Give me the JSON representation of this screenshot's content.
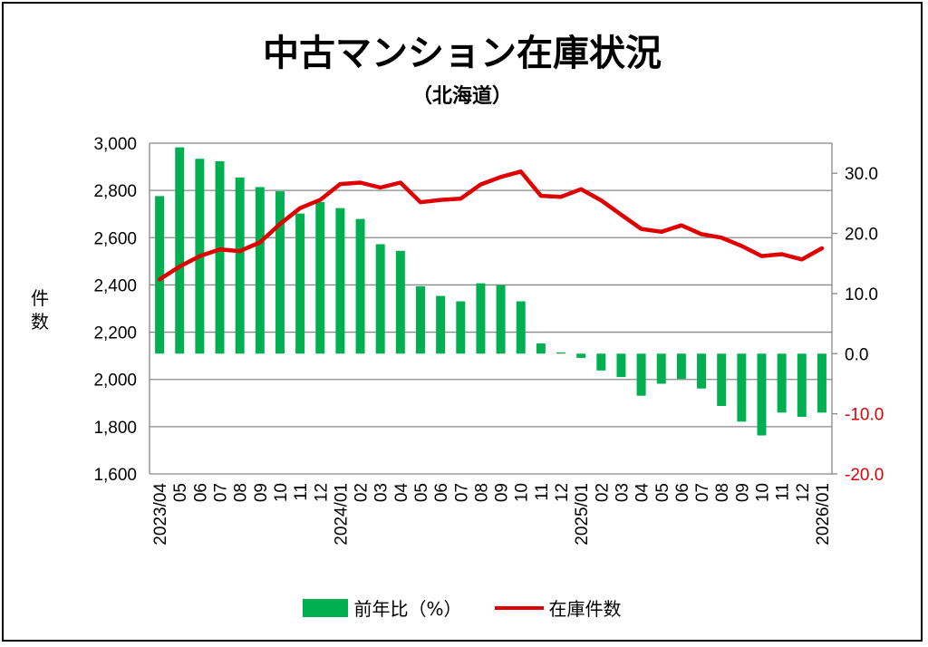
{
  "chart_data": {
    "type": "bar+line",
    "title": "中古マンション在庫状況",
    "subtitle": "（北海道）",
    "ylabel": "件数",
    "left_axis": {
      "min": 1600,
      "max": 3000,
      "step": 200,
      "ticks": [
        "1,600",
        "1,800",
        "2,000",
        "2,200",
        "2,400",
        "2,600",
        "2,800",
        "3,000"
      ]
    },
    "right_axis": {
      "min": -20,
      "max": 35,
      "step": 10,
      "ticks": [
        "-20.0",
        "-10.0",
        "0.0",
        "10.0",
        "20.0",
        "30.0"
      ],
      "tick_values": [
        -20,
        -10,
        0,
        10,
        20,
        30
      ],
      "negative_color": "#e00000",
      "positive_color": "#000000"
    },
    "categories": [
      "2023/04",
      "05",
      "06",
      "07",
      "08",
      "09",
      "10",
      "11",
      "12",
      "2024/01",
      "02",
      "03",
      "04",
      "05",
      "06",
      "07",
      "08",
      "09",
      "10",
      "11",
      "12",
      "2025/01",
      "02",
      "03",
      "04",
      "05",
      "06",
      "07",
      "08",
      "09",
      "10",
      "11",
      "12",
      "2026/01"
    ],
    "series": [
      {
        "name": "前年比（%）",
        "type": "bar",
        "axis": "right",
        "color": "#00b050",
        "values": [
          26.2,
          34.3,
          32.4,
          32.0,
          29.3,
          27.7,
          27.0,
          23.3,
          25.2,
          24.2,
          22.4,
          18.2,
          17.1,
          11.2,
          9.6,
          8.7,
          11.7,
          11.4,
          8.7,
          1.7,
          0.2,
          -0.7,
          -2.8,
          -3.9,
          -7.0,
          -5.0,
          -4.2,
          -5.8,
          -8.7,
          -11.3,
          -13.6,
          -9.8,
          -10.5,
          -9.8
        ]
      },
      {
        "name": "在庫件数",
        "type": "line",
        "axis": "left",
        "color": "#e00000",
        "values": [
          2423,
          2478,
          2522,
          2550,
          2543,
          2580,
          2658,
          2725,
          2760,
          2827,
          2833,
          2812,
          2833,
          2750,
          2760,
          2765,
          2825,
          2857,
          2880,
          2777,
          2773,
          2805,
          2758,
          2697,
          2637,
          2625,
          2652,
          2615,
          2600,
          2565,
          2522,
          2530,
          2508,
          2555
        ]
      }
    ],
    "legend": [
      "前年比（%）",
      "在庫件数"
    ],
    "grid": true
  }
}
